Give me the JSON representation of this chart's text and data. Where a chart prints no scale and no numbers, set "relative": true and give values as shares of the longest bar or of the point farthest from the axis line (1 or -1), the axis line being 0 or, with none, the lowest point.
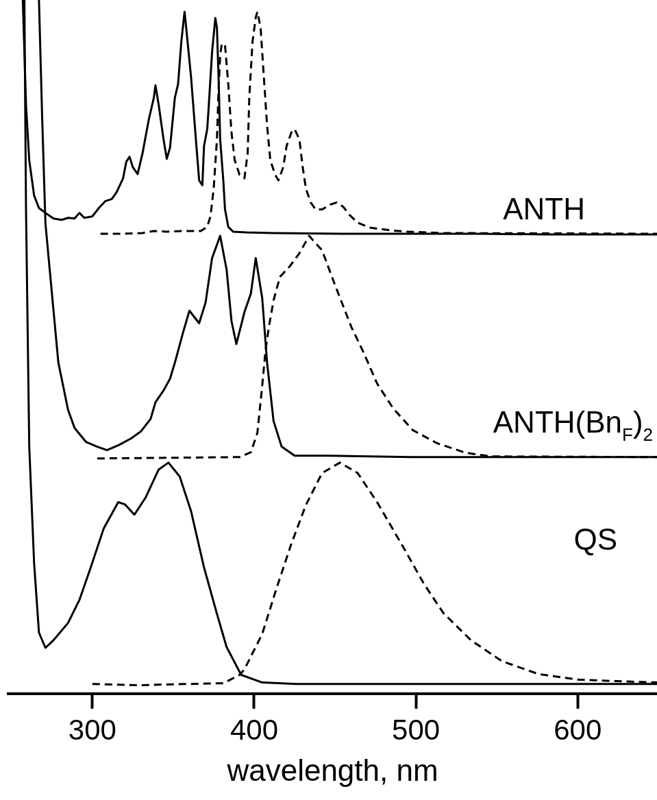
{
  "chart_data": {
    "type": "line",
    "relative": true,
    "xlabel": "wavelength, nm",
    "xlim": [
      248,
      649
    ],
    "xticks": [
      300,
      400,
      500,
      600
    ],
    "series": [
      {
        "color": "#000000",
        "line_style": "solid",
        "x": [
          257,
          259,
          261,
          264,
          267,
          271,
          276,
          281,
          285,
          289,
          292,
          295,
          300,
          304,
          308,
          312,
          315,
          319,
          321,
          323,
          325,
          328,
          331,
          335,
          338,
          339,
          341,
          344,
          346,
          348,
          351,
          353,
          355,
          357,
          358,
          361,
          364,
          366,
          368,
          369,
          371,
          372,
          374,
          376,
          377,
          378,
          379,
          381,
          382,
          384,
          387,
          395,
          412,
          454,
          497,
          539,
          581,
          649
        ],
        "values": [
          1.0,
          0.849,
          0.769,
          0.718,
          0.7,
          0.693,
          0.685,
          0.683,
          0.686,
          0.685,
          0.693,
          0.686,
          0.688,
          0.7,
          0.71,
          0.713,
          0.723,
          0.743,
          0.767,
          0.774,
          0.759,
          0.749,
          0.779,
          0.829,
          0.859,
          0.877,
          0.849,
          0.799,
          0.771,
          0.787,
          0.859,
          0.879,
          0.94,
          0.983,
          0.96,
          0.889,
          0.799,
          0.74,
          0.733,
          0.789,
          0.814,
          0.849,
          0.925,
          0.974,
          0.96,
          0.889,
          0.799,
          0.738,
          0.698,
          0.673,
          0.666,
          0.665,
          0.664,
          0.663,
          0.663,
          0.663,
          0.662,
          0.662
        ]
      },
      {
        "color": "#000000",
        "line_style": "dashed",
        "x": [
          305,
          319,
          331,
          338,
          346,
          357,
          367,
          371,
          373,
          375,
          377,
          378,
          379,
          380,
          382,
          384,
          386,
          388,
          391,
          394,
          396,
          397,
          399,
          401,
          402,
          404,
          406,
          408,
          410,
          413,
          415,
          418,
          420,
          423,
          425,
          428,
          430,
          432,
          435,
          438,
          442,
          447,
          451,
          455,
          459,
          464,
          471,
          484,
          494,
          518,
          649
        ],
        "values": [
          0.663,
          0.663,
          0.664,
          0.667,
          0.666,
          0.667,
          0.667,
          0.673,
          0.688,
          0.728,
          0.799,
          0.869,
          0.92,
          0.937,
          0.935,
          0.879,
          0.809,
          0.769,
          0.748,
          0.743,
          0.779,
          0.859,
          0.94,
          0.975,
          0.983,
          0.96,
          0.889,
          0.819,
          0.769,
          0.748,
          0.74,
          0.759,
          0.789,
          0.809,
          0.814,
          0.799,
          0.759,
          0.728,
          0.708,
          0.698,
          0.698,
          0.705,
          0.708,
          0.702,
          0.69,
          0.679,
          0.672,
          0.668,
          0.666,
          0.664,
          0.663
        ]
      },
      {
        "color": "#000000",
        "line_style": "solid",
        "x": [
          267,
          269,
          271,
          275,
          279,
          285,
          289,
          296,
          303,
          309,
          316,
          324,
          330,
          336,
          339,
          344,
          348,
          351,
          356,
          360,
          366,
          370,
          374,
          379,
          383,
          386,
          389,
          394,
          398,
          401,
          405,
          408,
          412,
          417,
          425,
          446,
          497,
          649
        ],
        "values": [
          1.0,
          0.829,
          0.678,
          0.577,
          0.477,
          0.409,
          0.383,
          0.363,
          0.356,
          0.351,
          0.358,
          0.368,
          0.378,
          0.396,
          0.42,
          0.437,
          0.454,
          0.477,
          0.52,
          0.552,
          0.534,
          0.564,
          0.628,
          0.66,
          0.611,
          0.537,
          0.504,
          0.55,
          0.577,
          0.628,
          0.57,
          0.477,
          0.393,
          0.356,
          0.343,
          0.343,
          0.341,
          0.341
        ]
      },
      {
        "color": "#000000",
        "line_style": "dashed",
        "x": [
          303,
          391,
          398,
          402,
          405,
          407,
          409,
          412,
          416,
          422,
          428,
          434,
          442,
          450,
          460,
          468,
          476,
          486,
          498,
          513,
          531,
          547,
          649
        ],
        "values": [
          0.339,
          0.341,
          0.348,
          0.376,
          0.444,
          0.494,
          0.527,
          0.567,
          0.601,
          0.616,
          0.635,
          0.66,
          0.639,
          0.589,
          0.529,
          0.49,
          0.447,
          0.411,
          0.38,
          0.361,
          0.347,
          0.342,
          0.341
        ]
      },
      {
        "color": "#000000",
        "line_style": "solid",
        "x": [
          258,
          259,
          261,
          264,
          267,
          271,
          276,
          285,
          292,
          299,
          307,
          316,
          320,
          326,
          333,
          341,
          347,
          354,
          361,
          369,
          377,
          383,
          392,
          405,
          426,
          649
        ],
        "values": [
          1.0,
          0.698,
          0.356,
          0.188,
          0.088,
          0.066,
          0.077,
          0.102,
          0.135,
          0.182,
          0.238,
          0.276,
          0.273,
          0.258,
          0.283,
          0.323,
          0.333,
          0.313,
          0.263,
          0.182,
          0.115,
          0.067,
          0.027,
          0.016,
          0.014,
          0.014
        ]
      },
      {
        "color": "#000000",
        "line_style": "dashed",
        "x": [
          300,
          330,
          341,
          381,
          391,
          394,
          405,
          414,
          423,
          432,
          442,
          453,
          464,
          476,
          491,
          505,
          517,
          534,
          553,
          576,
          601,
          649
        ],
        "values": [
          0.014,
          0.012,
          0.013,
          0.015,
          0.027,
          0.035,
          0.086,
          0.153,
          0.216,
          0.272,
          0.318,
          0.333,
          0.318,
          0.276,
          0.216,
          0.158,
          0.116,
          0.077,
          0.047,
          0.028,
          0.02,
          0.016
        ]
      }
    ],
    "annotations": [
      "ANTH",
      "ANTH(Bn$_{F}$)$_{2}$",
      "QS"
    ]
  }
}
